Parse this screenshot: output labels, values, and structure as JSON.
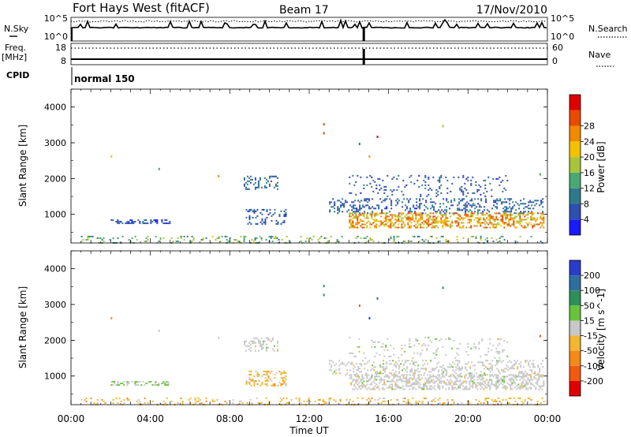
{
  "header": {
    "site": "Fort Hays West (fitACF)",
    "beam": "Beam 17",
    "date": "17/Nov/2010"
  },
  "strips": {
    "nsky_label": "N.Sky",
    "nsearch_label": "N.Search",
    "nsky_ticks": [
      "10^5",
      "10^0"
    ],
    "freq_label": "Freq.",
    "freq_unit": "[MHz]",
    "freq_ticks": [
      "18",
      "8"
    ],
    "nave_label": "Nave",
    "nave_ticks": [
      "60",
      "0"
    ],
    "cpid_label": "CPID",
    "cpid_mode": "normal 150"
  },
  "chart_data": [
    {
      "type": "heatmap",
      "name": "power",
      "ylabel": "Slant Range [km]",
      "xlabel": "Time UT",
      "x_ticks": [
        "00:00",
        "04:00",
        "08:00",
        "12:00",
        "16:00",
        "20:00",
        "00:00"
      ],
      "xlim_hours": [
        0,
        24
      ],
      "ylim_km": [
        200,
        4500
      ],
      "y_ticks": [
        1000,
        2000,
        3000,
        4000
      ],
      "colorbar": {
        "label": "Power [dB]",
        "ticks": [
          "4",
          "8",
          "12",
          "16",
          "20",
          "24",
          "28"
        ],
        "colors": [
          "#1a1aff",
          "#2e4fb0",
          "#2f7a8a",
          "#4aa873",
          "#a9c43a",
          "#f2c200",
          "#f28a00",
          "#e84a00",
          "#e00000"
        ]
      }
    },
    {
      "type": "heatmap",
      "name": "velocity",
      "ylabel": "Slant Range [km]",
      "xlabel": "Time UT",
      "x_ticks": [
        "00:00",
        "04:00",
        "08:00",
        "12:00",
        "16:00",
        "20:00",
        "00:00"
      ],
      "xlim_hours": [
        0,
        24
      ],
      "ylim_km": [
        200,
        4500
      ],
      "y_ticks": [
        1000,
        2000,
        3000,
        4000
      ],
      "colorbar": {
        "label": "Velocity [m s^-1]",
        "ticks": [
          "200",
          "100",
          "50",
          "15",
          "-15",
          "-50",
          "-100",
          "-200"
        ],
        "colors": [
          "#2a3ccc",
          "#2e6fa0",
          "#2f8f5a",
          "#68c23a",
          "#c8c8c8",
          "#f2b630",
          "#f28a1a",
          "#f25a10",
          "#e00000"
        ]
      }
    }
  ],
  "scatter_regions": [
    {
      "t0": 2.0,
      "t1": 5.0,
      "r0": 740,
      "r1": 860,
      "dens": 0.85,
      "p": [
        3,
        9
      ],
      "v": "mix_gw"
    },
    {
      "t0": 8.7,
      "t1": 10.4,
      "r0": 1720,
      "r1": 2080,
      "dens": 0.55,
      "p": [
        4,
        10
      ],
      "v": "grey"
    },
    {
      "t0": 8.8,
      "t1": 10.8,
      "r0": 730,
      "r1": 1150,
      "dens": 0.55,
      "p": [
        3,
        10
      ],
      "v": "orange"
    },
    {
      "t0": 13.0,
      "t1": 23.8,
      "r0": 1050,
      "r1": 1450,
      "dens": 0.5,
      "p": [
        3,
        10
      ],
      "v": "grey"
    },
    {
      "t0": 14.0,
      "t1": 23.8,
      "r0": 650,
      "r1": 1050,
      "dens": 0.85,
      "p": [
        14,
        28
      ],
      "v": "grey"
    },
    {
      "t0": 14.0,
      "t1": 22.0,
      "r0": 1500,
      "r1": 2100,
      "dens": 0.2,
      "p": [
        3,
        8
      ],
      "v": "grey"
    },
    {
      "t0": 0.5,
      "t1": 23.8,
      "r0": 220,
      "r1": 400,
      "dens": 0.3,
      "p": [
        8,
        18
      ],
      "v": "orange"
    }
  ]
}
